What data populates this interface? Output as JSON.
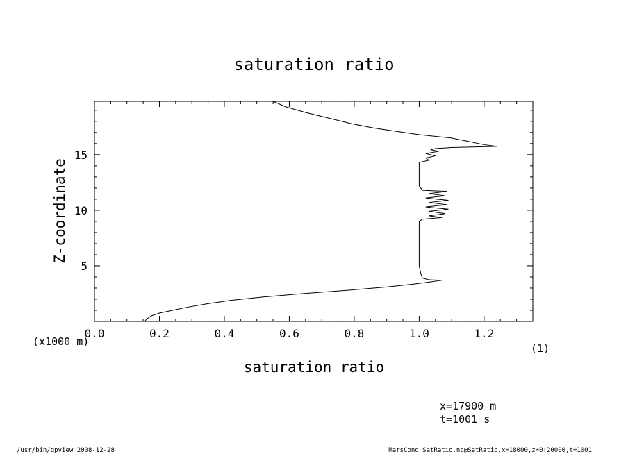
{
  "chart_data": {
    "type": "line",
    "title": "saturation ratio",
    "xlabel": "saturation ratio",
    "ylabel": "Z-coordinate",
    "xunit_label": "(1)",
    "yunit_label": "(x1000 m)",
    "xlim": [
      0.0,
      1.35
    ],
    "ylim": [
      0,
      19.8
    ],
    "xticks": [
      0.0,
      0.2,
      0.4,
      0.6,
      0.8,
      1.0,
      1.2
    ],
    "xtick_labels": [
      "0.0",
      "0.2",
      "0.4",
      "0.6",
      "0.8",
      "1.0",
      "1.2"
    ],
    "yticks": [
      5,
      10,
      15
    ],
    "ytick_labels": [
      "5",
      "10",
      "15"
    ],
    "grid": false,
    "series": [
      {
        "points": [
          [
            0.155,
            0.0
          ],
          [
            0.16,
            0.2
          ],
          [
            0.175,
            0.5
          ],
          [
            0.2,
            0.75
          ],
          [
            0.24,
            1.0
          ],
          [
            0.29,
            1.3
          ],
          [
            0.35,
            1.6
          ],
          [
            0.42,
            1.9
          ],
          [
            0.52,
            2.2
          ],
          [
            0.64,
            2.5
          ],
          [
            0.78,
            2.8
          ],
          [
            0.9,
            3.1
          ],
          [
            0.98,
            3.35
          ],
          [
            1.02,
            3.5
          ],
          [
            1.07,
            3.7
          ],
          [
            1.03,
            3.75
          ],
          [
            1.01,
            3.9
          ],
          [
            1.005,
            4.3
          ],
          [
            1.0,
            5.0
          ],
          [
            1.0,
            6.0
          ],
          [
            1.0,
            7.0
          ],
          [
            1.0,
            8.0
          ],
          [
            1.0,
            9.0
          ],
          [
            1.01,
            9.2
          ],
          [
            1.07,
            9.35
          ],
          [
            1.03,
            9.5
          ],
          [
            1.08,
            9.7
          ],
          [
            1.03,
            9.9
          ],
          [
            1.09,
            10.1
          ],
          [
            1.02,
            10.3
          ],
          [
            1.085,
            10.5
          ],
          [
            1.03,
            10.7
          ],
          [
            1.09,
            10.9
          ],
          [
            1.02,
            11.1
          ],
          [
            1.08,
            11.3
          ],
          [
            1.03,
            11.5
          ],
          [
            1.085,
            11.7
          ],
          [
            1.01,
            11.8
          ],
          [
            1.0,
            12.2
          ],
          [
            1.0,
            13.0
          ],
          [
            1.0,
            14.0
          ],
          [
            1.0,
            14.3
          ],
          [
            1.03,
            14.5
          ],
          [
            1.02,
            14.7
          ],
          [
            1.05,
            14.9
          ],
          [
            1.02,
            15.1
          ],
          [
            1.06,
            15.3
          ],
          [
            1.035,
            15.45
          ],
          [
            1.05,
            15.55
          ],
          [
            1.1,
            15.65
          ],
          [
            1.24,
            15.75
          ],
          [
            1.2,
            15.9
          ],
          [
            1.15,
            16.2
          ],
          [
            1.1,
            16.5
          ],
          [
            1.0,
            16.8
          ],
          [
            0.93,
            17.1
          ],
          [
            0.86,
            17.4
          ],
          [
            0.79,
            17.8
          ],
          [
            0.72,
            18.3
          ],
          [
            0.65,
            18.8
          ],
          [
            0.59,
            19.3
          ],
          [
            0.55,
            19.8
          ]
        ]
      }
    ]
  },
  "footer": {
    "info_x": "x=17900  m",
    "info_t": "t=1001  s",
    "left_note": "/usr/bin/gpview  2008-12-28",
    "right_note": "MarsCond_SatRatio.nc@SatRatio,x=18000,z=0:20000,t=1001"
  }
}
